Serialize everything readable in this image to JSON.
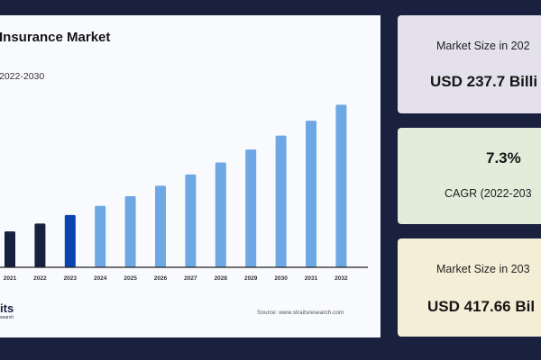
{
  "chart_data": {
    "type": "bar",
    "title": "Insurance Market",
    "subtitle": "2022-2030",
    "categories": [
      "2021",
      "2022",
      "2023",
      "2024",
      "2025",
      "2026",
      "2027",
      "2028",
      "2029",
      "2030",
      "2031",
      "2032"
    ],
    "values": [
      221.5,
      237.7,
      255.1,
      273.7,
      293.7,
      315.1,
      338.1,
      362.8,
      389.3,
      417.66,
      448.2,
      480.9
    ],
    "bar_colors": [
      "#16213f",
      "#16213f",
      "#0a44b0",
      "#6ea8e4",
      "#6ea8e4",
      "#6ea8e4",
      "#6ea8e4",
      "#6ea8e4",
      "#6ea8e4",
      "#6ea8e4",
      "#6ea8e4",
      "#6ea8e4"
    ],
    "ylim": [
      148,
      500
    ],
    "grid": false,
    "xlabel": "",
    "ylabel": ""
  },
  "source": "Source: www.straitsresearch.com",
  "logo": {
    "text": "its",
    "subtext": "search"
  },
  "cards": [
    {
      "label": "Market Size in 202",
      "value": "USD 237.7 Billi",
      "color": "#e4e0ec"
    },
    {
      "value": "7.3%",
      "label": "CAGR (2022-203",
      "color": "#e1ecda"
    },
    {
      "label": "Market Size in 203",
      "value": "USD 417.66 Bil",
      "color": "#f5eed6"
    }
  ],
  "colors": {
    "background": "#19213f",
    "panel": "#f9fafd"
  }
}
